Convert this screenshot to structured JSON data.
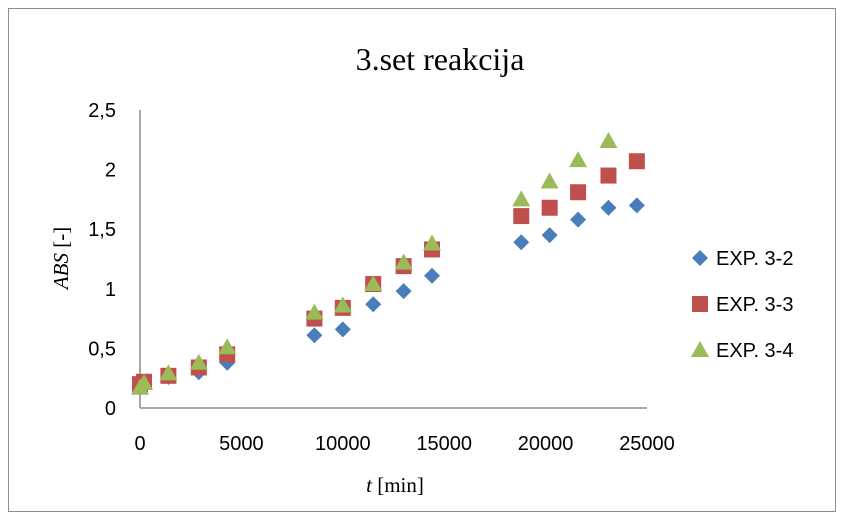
{
  "chart_data": {
    "type": "scatter",
    "title": "3.set reakcija",
    "xlabel_italic": "t",
    "xlabel_rest": " [min]",
    "ylabel_italic": "ABS",
    "ylabel_rest": " [-]",
    "xlim": [
      0,
      25000
    ],
    "ylim": [
      0,
      2.5
    ],
    "x_ticks": [
      0,
      5000,
      10000,
      15000,
      20000,
      25000
    ],
    "x_tick_labels": [
      "0",
      "5000",
      "10000",
      "15000",
      "20000",
      "25000"
    ],
    "y_ticks": [
      0,
      0.5,
      1,
      1.5,
      2,
      2.5
    ],
    "y_tick_labels": [
      "0",
      "0,5",
      "1",
      "1,5",
      "2",
      "2,5"
    ],
    "grid": false,
    "legend_position": "right",
    "series": [
      {
        "name": "EXP. 3-2",
        "marker": "diamond",
        "color": "#4a7ebb",
        "x": [
          0,
          200,
          1400,
          2900,
          4300,
          8600,
          10000,
          11500,
          13000,
          14400,
          18800,
          20200,
          21600,
          23100,
          24500
        ],
        "y": [
          0.17,
          0.22,
          0.26,
          0.3,
          0.38,
          0.61,
          0.66,
          0.87,
          0.98,
          1.11,
          1.39,
          1.45,
          1.58,
          1.68,
          1.7
        ]
      },
      {
        "name": "EXP. 3-3",
        "marker": "square",
        "color": "#c0504d",
        "x": [
          0,
          200,
          1400,
          2900,
          4300,
          8600,
          10000,
          11500,
          13000,
          14400,
          18800,
          20200,
          21600,
          23100,
          24500
        ],
        "y": [
          0.2,
          0.22,
          0.27,
          0.34,
          0.45,
          0.75,
          0.84,
          1.04,
          1.19,
          1.33,
          1.61,
          1.68,
          1.81,
          1.95,
          2.07
        ]
      },
      {
        "name": "EXP. 3-4",
        "marker": "triangle",
        "color": "#9bbb59",
        "x": [
          0,
          200,
          1400,
          2900,
          4300,
          8600,
          10000,
          11500,
          13000,
          14400,
          18800,
          20200,
          21600,
          23100
        ],
        "y": [
          0.17,
          0.21,
          0.29,
          0.38,
          0.51,
          0.8,
          0.86,
          1.04,
          1.22,
          1.38,
          1.75,
          1.9,
          2.08,
          2.24
        ]
      }
    ]
  }
}
